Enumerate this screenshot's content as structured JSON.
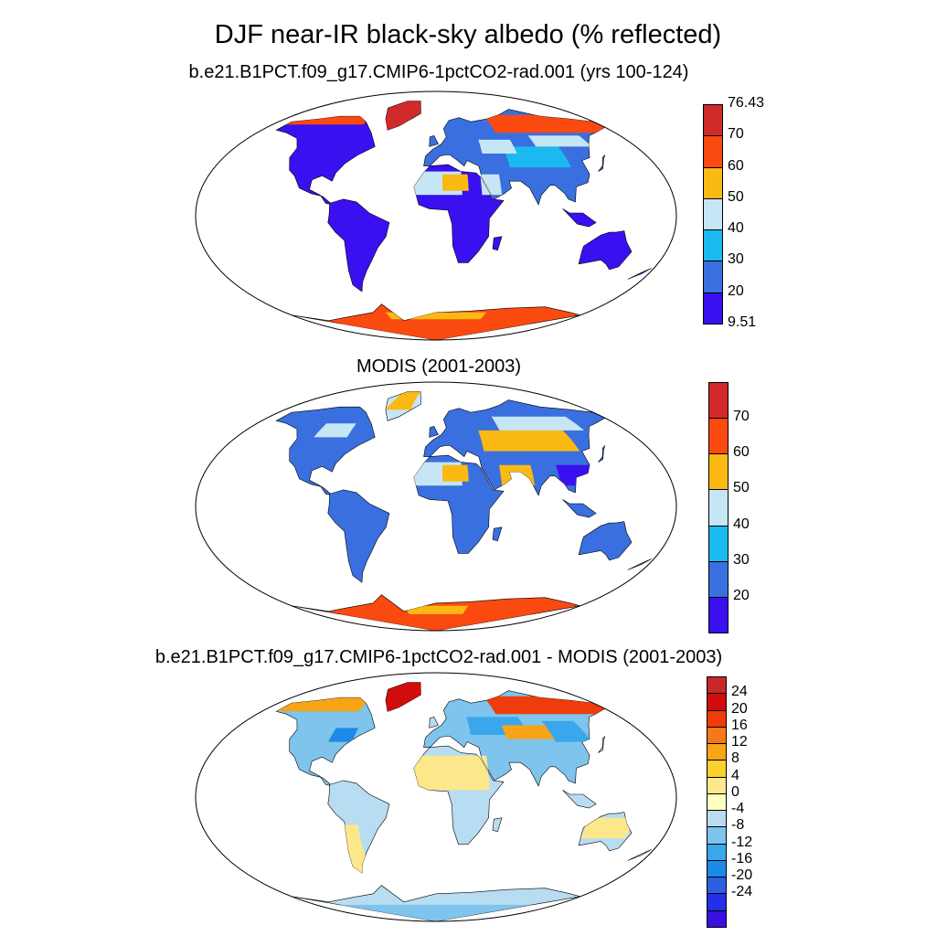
{
  "title": "DJF near-IR black-sky albedo (% reflected)",
  "panels": [
    {
      "title": "b.e21.B1PCT.f09_g17.CMIP6-1pctCO2-rad.001 (yrs 100-124)",
      "colorbar": {
        "colors": [
          "#3a10f0",
          "#3a6fe0",
          "#1abaf0",
          "#c6e6f5",
          "#fbb913",
          "#fb4a10",
          "#d12a2a"
        ],
        "labels": [
          "76.43",
          "70",
          "60",
          "50",
          "40",
          "30",
          "20",
          "9.51"
        ]
      }
    },
    {
      "title": "MODIS (2001-2003)",
      "colorbar": {
        "colors": [
          "#3a10f0",
          "#3a6fe0",
          "#1abaf0",
          "#c6e6f5",
          "#fbb913",
          "#fb4a10",
          "#d12a2a"
        ],
        "labels": [
          "70",
          "60",
          "50",
          "40",
          "30",
          "20"
        ]
      }
    },
    {
      "title": "b.e21.B1PCT.f09_g17.CMIP6-1pctCO2-rad.001 - MODIS (2001-2003)",
      "colorbar": {
        "colors": [
          "#3a10e0",
          "#2230e8",
          "#2e5fe0",
          "#1e8ae8",
          "#3aa6ec",
          "#7ec4ec",
          "#b8dcf2",
          "#ffffc0",
          "#fce88a",
          "#fbd030",
          "#f7a418",
          "#f77818",
          "#f03c0a",
          "#d00c0c",
          "#c82828"
        ],
        "labels": [
          "24",
          "20",
          "16",
          "12",
          "8",
          "4",
          "0",
          "-4",
          "-8",
          "-12",
          "-16",
          "-20",
          "-24"
        ]
      }
    }
  ]
}
